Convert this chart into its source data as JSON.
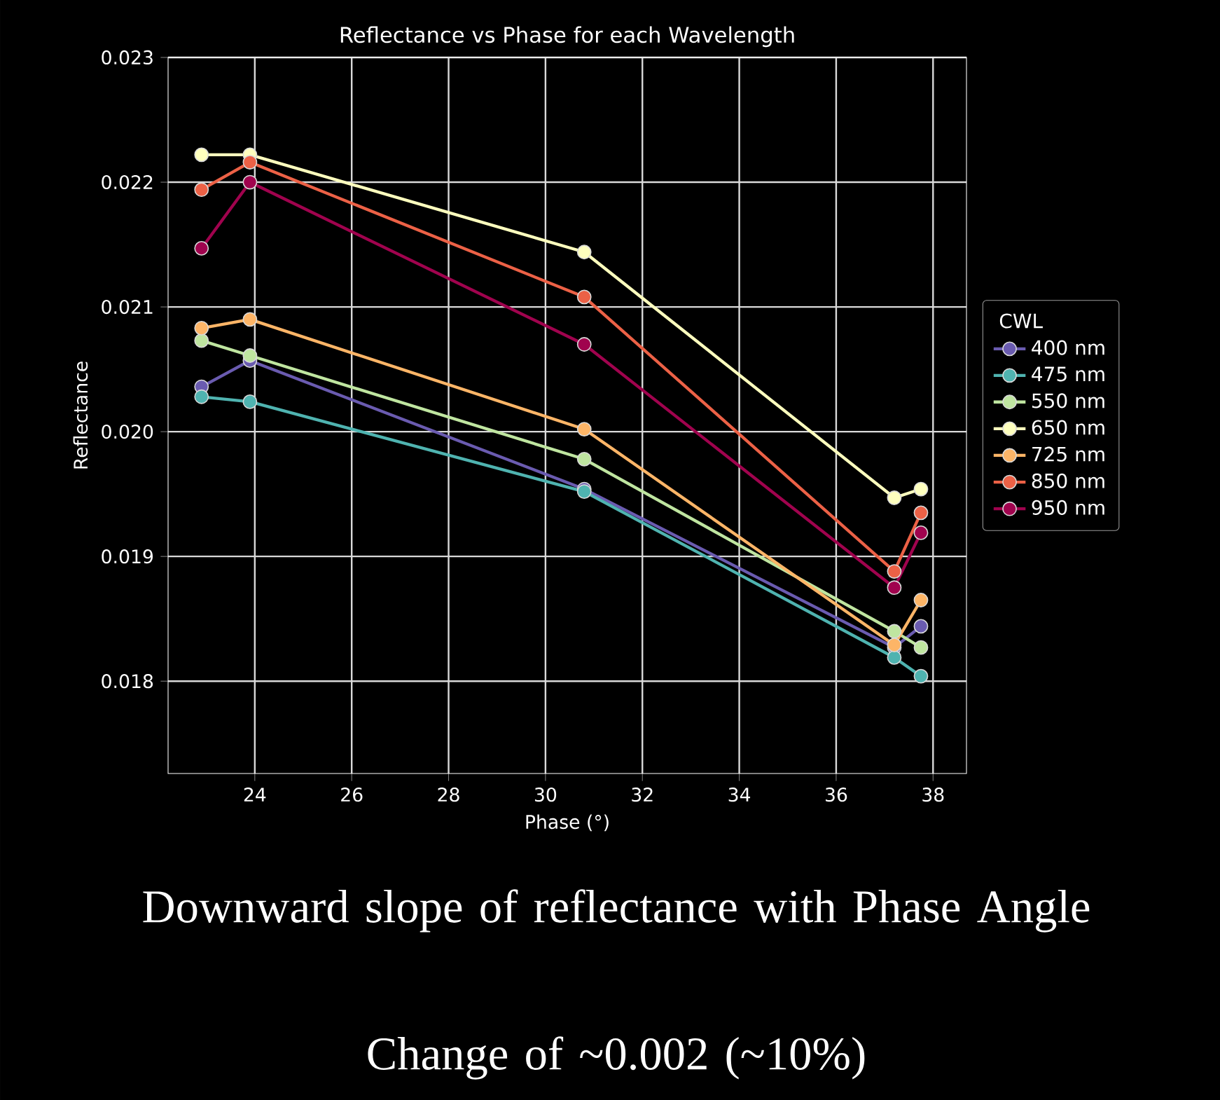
{
  "chart_data": {
    "type": "line",
    "title": "Reflectance vs Phase for each Wavelength",
    "xlabel": "Phase (°)",
    "ylabel": "Reflectance",
    "legend_title": "CWL",
    "x": [
      22.9,
      23.9,
      30.8,
      37.2,
      37.75
    ],
    "series": [
      {
        "name": "400 nm",
        "color": "#6a5bb0",
        "values": [
          0.02036,
          0.02057,
          0.01954,
          0.01827,
          0.01844
        ]
      },
      {
        "name": "475 nm",
        "color": "#4fb3b0",
        "values": [
          0.02028,
          0.02024,
          0.01952,
          0.01819,
          0.01804
        ]
      },
      {
        "name": "550 nm",
        "color": "#bfe5a0",
        "values": [
          0.02073,
          0.02061,
          0.01978,
          0.0184,
          0.01827
        ]
      },
      {
        "name": "650 nm",
        "color": "#feffbe",
        "values": [
          0.02222,
          0.02222,
          0.02144,
          0.01947,
          0.01954
        ]
      },
      {
        "name": "725 nm",
        "color": "#fdb567",
        "values": [
          0.02083,
          0.0209,
          0.02002,
          0.01829,
          0.01865
        ]
      },
      {
        "name": "850 nm",
        "color": "#ec6146",
        "values": [
          0.02194,
          0.02216,
          0.02108,
          0.01888,
          0.01935
        ]
      },
      {
        "name": "950 nm",
        "color": "#a0034e",
        "values": [
          0.02147,
          0.022,
          0.0207,
          0.01875,
          0.01919
        ]
      }
    ],
    "xlim": [
      22.21,
      38.69
    ],
    "ylim": [
      0.01726,
      0.023
    ],
    "xticks": [
      24,
      26,
      28,
      30,
      32,
      34,
      36,
      38
    ],
    "yticks": [
      0.018,
      0.019,
      {
        "value": 0.02,
        "label": "0.020"
      },
      0.021,
      0.022,
      0.023
    ],
    "grid": true,
    "legend": "right",
    "marker": "circle",
    "line_style": "solid",
    "annotations": [
      "Downward slope of reflectance with Phase Angle",
      "Change of ~0.002 (~10%)"
    ]
  }
}
